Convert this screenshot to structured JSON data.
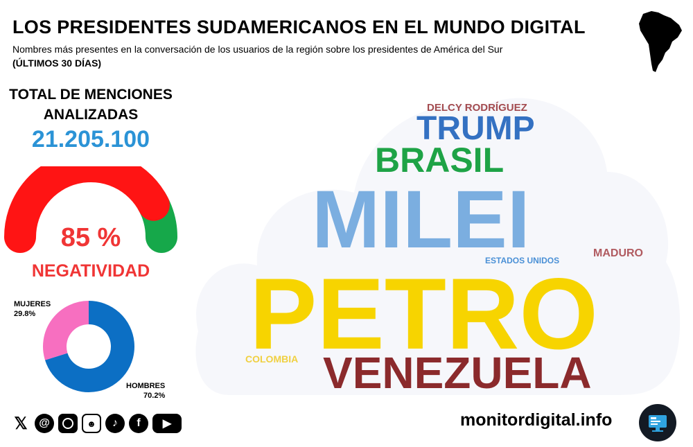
{
  "header": {
    "title": "LOS PRESIDENTES SUDAMERICANOS EN EL MUNDO DIGITAL",
    "subtitle": "Nombres más presentes en la conversación de los usuarios de la región sobre los presidentes de América del Sur",
    "period": "(ÚLTIMOS 30 DÍAS)"
  },
  "stats": {
    "total_label": "TOTAL DE MENCIONES ANALIZADAS",
    "total_value": "21.205.100",
    "sentiment_value_text": "85 %",
    "sentiment_fraction": 0.85,
    "sentiment_label": "NEGATIVIDAD",
    "colors": {
      "negative": "#ff1414",
      "positive": "#16a84a",
      "accent": "#2b93d6"
    }
  },
  "gender": {
    "women_label": "MUJERES",
    "women_value": "29.8%",
    "women_fraction": 0.298,
    "men_label": "HOMBRES",
    "men_value": "70.2%",
    "men_fraction": 0.702,
    "colors": {
      "women": "#f76fc0",
      "men": "#0c6fc4"
    }
  },
  "word_cloud": {
    "words": [
      {
        "text": "DELCY RODRÍGUEZ",
        "color": "#a34b4f"
      },
      {
        "text": "TRUMP",
        "color": "#3471c2"
      },
      {
        "text": "BRASIL",
        "color": "#1ea346"
      },
      {
        "text": "MILEI",
        "color": "#7baee0"
      },
      {
        "text": "ESTADOS UNIDOS",
        "color": "#4a90d6"
      },
      {
        "text": "MADURO",
        "color": "#b05a5f"
      },
      {
        "text": "PETRO",
        "color": "#f7d400"
      },
      {
        "text": "COLOMBIA",
        "color": "#f0d040"
      },
      {
        "text": "VENEZUELA",
        "color": "#8b2a2c"
      }
    ]
  },
  "social": {
    "icons": [
      "x-icon",
      "threads-icon",
      "instagram-icon",
      "forum-icon",
      "tiktok-icon",
      "facebook-icon",
      "youtube-icon"
    ]
  },
  "footer": {
    "site": "monitordigital.info"
  }
}
